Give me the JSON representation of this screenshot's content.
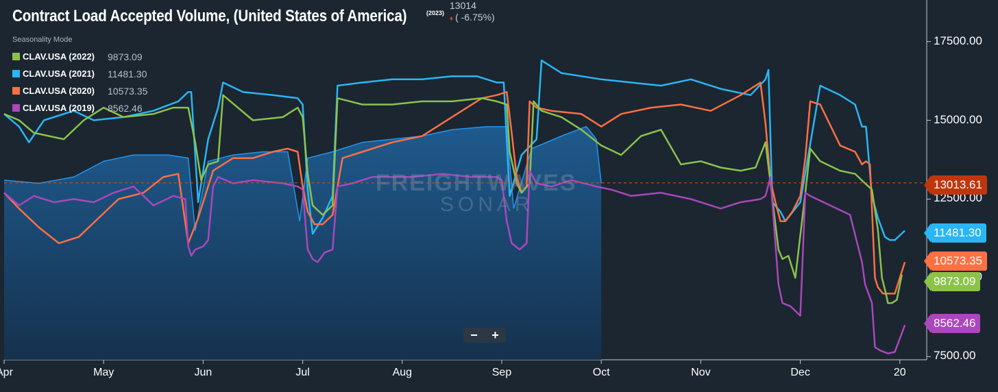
{
  "header": {
    "title": "Contract Load Accepted Volume, (United States of America)",
    "year_badge": "(2023)",
    "current_value": "13014",
    "change": "( -6.75%)"
  },
  "legend": {
    "mode": "Seasonality Mode",
    "items": [
      {
        "label": "CLAV.USA (2022)",
        "value": "9873.09",
        "color": "#8bc34a"
      },
      {
        "label": "CLAV.USA (2021)",
        "value": "11481.30",
        "color": "#29b6f6"
      },
      {
        "label": "CLAV.USA (2020)",
        "value": "10573.35",
        "color": "#ff7043"
      },
      {
        "label": "CLAV.USA (2019)",
        "value": "8562.46",
        "color": "#ab47bc"
      }
    ]
  },
  "zoom": {
    "minus": "−",
    "plus": "+"
  },
  "tags": {
    "current": {
      "text": "13013.61",
      "color": "#e65100"
    },
    "y2021": {
      "text": "11481.30",
      "color": "#29b6f6"
    },
    "y2020": {
      "text": "10573.35",
      "color": "#ff7043"
    },
    "y2022": {
      "text": "9873.09",
      "color": "#8bc34a"
    },
    "y2019": {
      "text": "8562.46",
      "color": "#ab47bc"
    }
  },
  "watermark": {
    "line1": "FREIGHTWAVES",
    "line2": "SONAR"
  },
  "chart_data": {
    "type": "line",
    "title": "Contract Load Accepted Volume, (United States of America)",
    "xlabel": "",
    "ylabel": "",
    "ylim": [
      7400,
      18600
    ],
    "y_ticks": [
      7500,
      10000,
      12500,
      15000,
      17500
    ],
    "y_tick_labels": [
      "7500.00",
      "10000.00",
      "12500.00",
      "15000.00",
      "17500.00"
    ],
    "x_tick_labels": [
      "Apr",
      "May",
      "Jun",
      "Jul",
      "Aug",
      "Sep",
      "Oct",
      "Nov",
      "Dec",
      "20"
    ],
    "x_domain": [
      0,
      9.27
    ],
    "reference_line": 13013.61,
    "series": [
      {
        "name": "CLAV.USA (2023)",
        "style": "area",
        "color": "#1f5d92",
        "x": [
          0,
          0.35,
          0.7,
          1.0,
          1.3,
          1.65,
          1.85,
          1.92,
          2.05,
          2.3,
          2.6,
          2.85,
          2.97,
          3.05,
          3.3,
          3.6,
          3.9,
          4.2,
          4.5,
          4.85,
          5.05,
          5.12,
          5.3,
          5.6,
          5.85,
          5.95,
          6.0
        ],
        "values": [
          13100,
          13000,
          13200,
          13700,
          13900,
          13900,
          13800,
          11500,
          13700,
          13900,
          14000,
          14000,
          11800,
          13800,
          14000,
          14300,
          14400,
          14500,
          14700,
          14800,
          14800,
          12200,
          14100,
          14500,
          14800,
          14400,
          13000
        ]
      },
      {
        "name": "CLAV.USA (2021)",
        "color": "#29b6f6",
        "x": [
          0,
          0.15,
          0.25,
          0.4,
          0.7,
          0.9,
          1.2,
          1.5,
          1.75,
          1.85,
          1.88,
          1.95,
          2.05,
          2.15,
          2.2,
          2.4,
          2.7,
          2.95,
          3.0,
          3.05,
          3.1,
          3.2,
          3.3,
          3.35,
          3.6,
          3.9,
          4.2,
          4.5,
          4.75,
          4.95,
          5.02,
          5.08,
          5.2,
          5.35,
          5.4,
          5.6,
          5.8,
          6.0,
          6.3,
          6.6,
          6.9,
          7.2,
          7.5,
          7.65,
          7.68,
          7.72,
          7.8,
          7.85,
          7.9,
          8.0,
          8.2,
          8.4,
          8.55,
          8.62,
          8.66,
          8.72,
          8.78,
          8.85,
          8.9,
          8.95,
          9.05
        ],
        "values": [
          15200,
          14800,
          14300,
          15000,
          15300,
          15000,
          15100,
          15300,
          15600,
          15900,
          15900,
          12400,
          14400,
          15400,
          16200,
          15900,
          15800,
          15700,
          15500,
          12800,
          11400,
          11900,
          12600,
          16100,
          16200,
          16300,
          16300,
          16400,
          16400,
          16200,
          16200,
          12600,
          13900,
          14400,
          16900,
          16500,
          16400,
          16300,
          16200,
          16100,
          16300,
          16000,
          15800,
          16300,
          16600,
          12400,
          12100,
          11800,
          12000,
          12400,
          16100,
          15800,
          15500,
          14800,
          14800,
          12600,
          11900,
          11300,
          11200,
          11200,
          11500
        ]
      },
      {
        "name": "CLAV.USA (2020)",
        "color": "#ff7043",
        "x": [
          0,
          0.15,
          0.35,
          0.55,
          0.75,
          0.95,
          1.15,
          1.4,
          1.6,
          1.75,
          1.8,
          1.85,
          1.95,
          2.1,
          2.3,
          2.5,
          2.7,
          2.85,
          2.95,
          3.0,
          3.05,
          3.12,
          3.2,
          3.3,
          3.4,
          3.6,
          3.9,
          4.2,
          4.4,
          4.6,
          4.8,
          4.95,
          5.05,
          5.1,
          5.15,
          5.2,
          5.25,
          5.28,
          5.35,
          5.5,
          5.8,
          6.0,
          6.2,
          6.5,
          6.8,
          7.1,
          7.4,
          7.6,
          7.65,
          7.7,
          7.75,
          7.8,
          7.85,
          7.92,
          8.0,
          8.05,
          8.1,
          8.2,
          8.4,
          8.55,
          8.62,
          8.66,
          8.7,
          8.72,
          8.75,
          8.78,
          8.83,
          8.88,
          8.95,
          9.05
        ],
        "values": [
          12700,
          12200,
          11600,
          11100,
          11300,
          11900,
          12500,
          12700,
          13200,
          13300,
          12200,
          11100,
          11900,
          13400,
          13800,
          13800,
          14000,
          14100,
          14000,
          12900,
          12100,
          11700,
          11700,
          12000,
          13800,
          14000,
          14300,
          14500,
          14900,
          15300,
          15700,
          15800,
          15900,
          14600,
          13200,
          12700,
          12900,
          15600,
          15400,
          15300,
          15200,
          14800,
          15200,
          15400,
          15500,
          15300,
          15800,
          16200,
          14900,
          13100,
          12400,
          11800,
          11800,
          12100,
          12600,
          13800,
          15600,
          15500,
          14200,
          14000,
          13600,
          13700,
          13600,
          12200,
          10000,
          9700,
          9500,
          9500,
          9500,
          10500
        ]
      },
      {
        "name": "CLAV.USA (2022)",
        "color": "#8bc34a",
        "x": [
          0,
          0.15,
          0.3,
          0.6,
          0.8,
          1.0,
          1.2,
          1.5,
          1.7,
          1.85,
          1.92,
          1.98,
          2.05,
          2.15,
          2.2,
          2.5,
          2.8,
          2.95,
          3.0,
          3.05,
          3.1,
          3.2,
          3.3,
          3.35,
          3.6,
          3.9,
          4.2,
          4.5,
          4.8,
          4.95,
          5.05,
          5.08,
          5.15,
          5.2,
          5.28,
          5.32,
          5.4,
          5.6,
          5.8,
          6.0,
          6.2,
          6.4,
          6.6,
          6.8,
          7.0,
          7.2,
          7.4,
          7.55,
          7.65,
          7.72,
          7.78,
          7.82,
          7.88,
          7.95,
          8.05,
          8.1,
          8.2,
          8.4,
          8.55,
          8.65,
          8.72,
          8.78,
          8.82,
          8.86,
          8.88,
          8.92,
          8.97,
          9.02
        ],
        "values": [
          15200,
          15000,
          14600,
          14400,
          15000,
          15400,
          15100,
          15200,
          15400,
          15400,
          14300,
          13100,
          13600,
          13700,
          15800,
          15000,
          15100,
          15400,
          15100,
          13300,
          12300,
          12000,
          12300,
          15700,
          15500,
          15500,
          15600,
          15600,
          15700,
          15600,
          15500,
          14000,
          13000,
          12700,
          13000,
          15600,
          15300,
          15100,
          14700,
          14200,
          13900,
          14500,
          14700,
          13600,
          13700,
          13500,
          13400,
          13500,
          14300,
          12500,
          10900,
          10600,
          10700,
          10000,
          12700,
          14100,
          13700,
          13400,
          13300,
          13000,
          12800,
          11500,
          10000,
          9500,
          9200,
          9200,
          9300,
          10100
        ]
      },
      {
        "name": "CLAV.USA (2019)",
        "color": "#ab47bc",
        "x": [
          0,
          0.15,
          0.3,
          0.5,
          0.7,
          0.9,
          1.1,
          1.3,
          1.5,
          1.7,
          1.82,
          1.85,
          1.88,
          1.92,
          2.0,
          2.05,
          2.1,
          2.15,
          2.3,
          2.5,
          2.8,
          2.95,
          3.0,
          3.05,
          3.1,
          3.15,
          3.22,
          3.3,
          3.35,
          3.5,
          3.7,
          3.9,
          4.1,
          4.4,
          4.7,
          4.95,
          5.0,
          5.05,
          5.1,
          5.18,
          5.25,
          5.28,
          5.35,
          5.5,
          5.7,
          5.95,
          6.1,
          6.3,
          6.6,
          6.9,
          7.2,
          7.4,
          7.6,
          7.65,
          7.7,
          7.78,
          7.82,
          7.9,
          8.0,
          8.05,
          8.1,
          8.3,
          8.5,
          8.62,
          8.65,
          8.72,
          8.75,
          8.8,
          8.88,
          8.95,
          9.05
        ],
        "values": [
          12700,
          12300,
          12600,
          12400,
          12500,
          12400,
          12700,
          12900,
          12300,
          12600,
          12500,
          11000,
          10700,
          10900,
          11000,
          11200,
          12900,
          13200,
          13000,
          13100,
          13000,
          12900,
          12800,
          10900,
          10600,
          10500,
          10800,
          10900,
          12900,
          13000,
          13200,
          13200,
          13200,
          13300,
          13200,
          13200,
          13100,
          11800,
          11100,
          10900,
          11100,
          13400,
          13000,
          12900,
          13100,
          12900,
          12800,
          12600,
          12700,
          12500,
          12200,
          12400,
          12500,
          12600,
          13200,
          9800,
          9200,
          9100,
          8800,
          12700,
          12600,
          12300,
          12000,
          10500,
          9800,
          9200,
          7800,
          7700,
          7600,
          7650,
          8500
        ]
      }
    ]
  },
  "colors": {
    "background": "#1b2631",
    "reference_line": "#e65100",
    "axis": "#c7ced6"
  }
}
